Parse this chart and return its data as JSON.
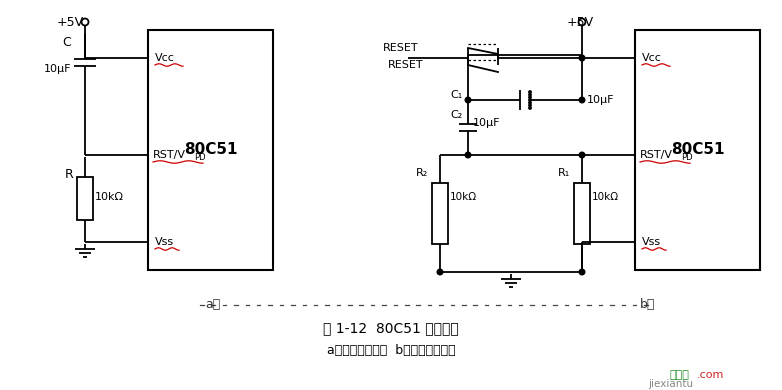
{
  "background": "#ffffff",
  "title1": "图 1-12  80C51 复位电路",
  "title2": "a）上电复位电路  b）按键复位电路",
  "label_a": "a）",
  "label_b": "b）",
  "watermark_green": "接线图",
  "watermark_com": ".com",
  "watermark_gray": "jiexiantu",
  "chip_label": "80C51",
  "vcc_label": "Vcc",
  "vss_label": "Vss",
  "rst_label": "RST/V",
  "rst_sub": "PD",
  "v5_label": "+5V",
  "c_label": "C",
  "c_unit": "10μF",
  "r_label": "R",
  "r_unit": "10kΩ",
  "c1_label": "C₁",
  "c1_unit": "10μF",
  "c2_label": "C₂",
  "c2_unit": "10μF",
  "r1_label": "R₁",
  "r1_unit": "10kΩ",
  "r2_label": "R₂",
  "r2_unit": "10kΩ",
  "reset_label": "RESET",
  "black": "#000000",
  "red_wavy": "#cc0000",
  "dot_color": "#555555"
}
